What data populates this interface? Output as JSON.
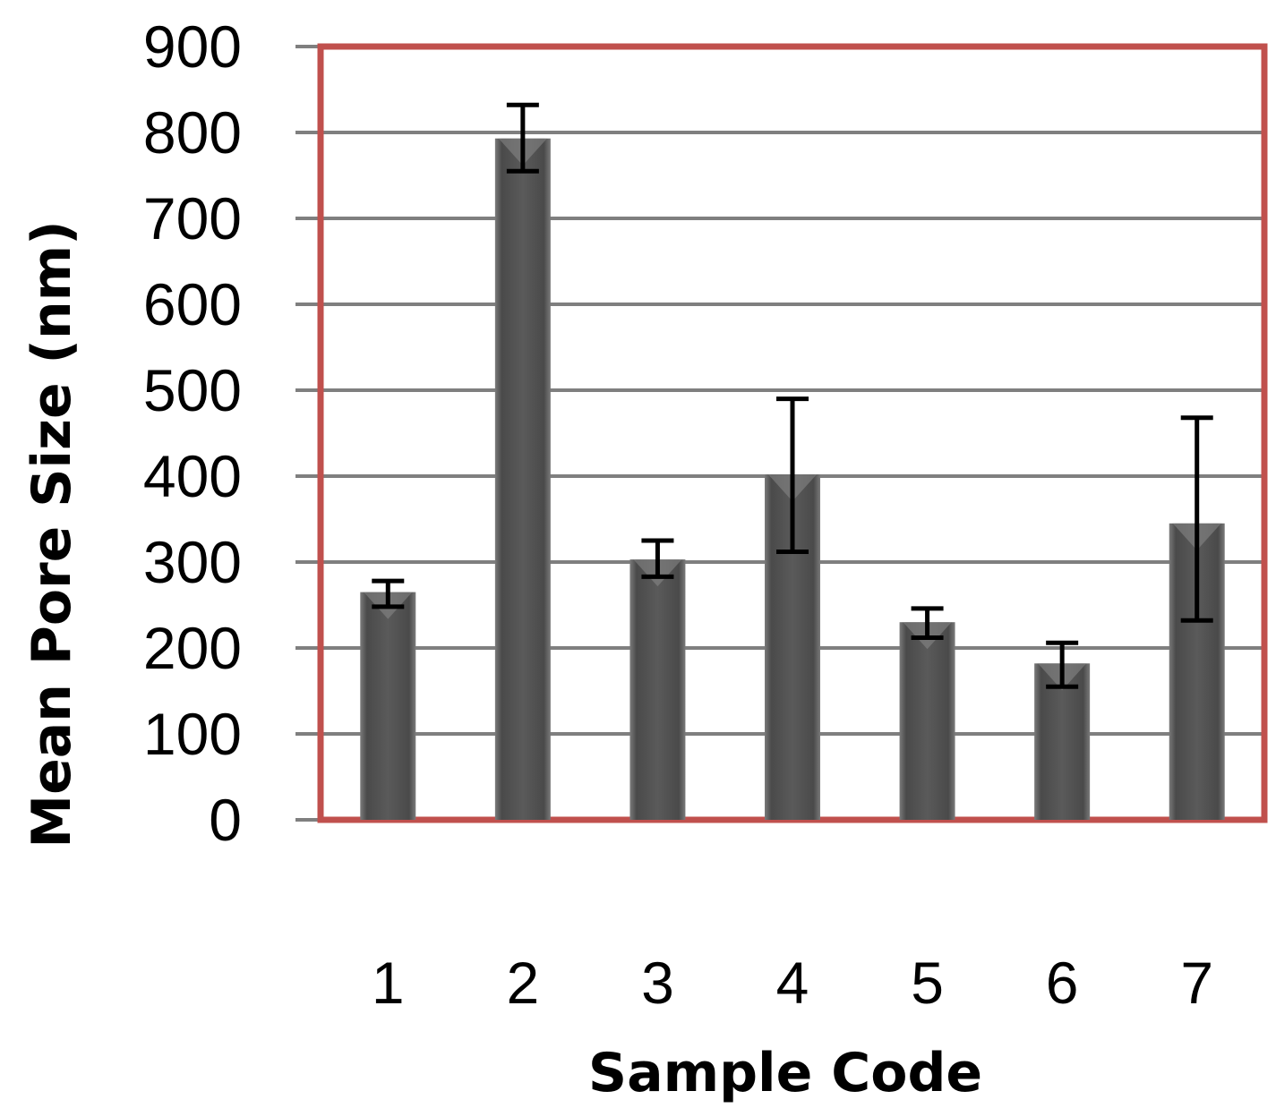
{
  "chart_data": {
    "type": "bar",
    "title": "",
    "xlabel": "Sample Code",
    "ylabel": "Mean Pore Size (nm)",
    "categories": [
      "1",
      "2",
      "3",
      "4",
      "5",
      "6",
      "7"
    ],
    "values": [
      265,
      793,
      303,
      402,
      230,
      182,
      345
    ],
    "error_upper": [
      278,
      832,
      325,
      490,
      246,
      206,
      468
    ],
    "error_lower": [
      248,
      755,
      283,
      312,
      212,
      155,
      232
    ],
    "ylim": [
      0,
      900
    ],
    "yticks": [
      "0",
      "100",
      "200",
      "300",
      "400",
      "500",
      "600",
      "700",
      "800",
      "900"
    ],
    "grid": true,
    "legend": "none",
    "colors": {
      "bar": "#555555",
      "bar_highlight": "#8a8a8a",
      "plot_border": "#c0504d",
      "gridline": "#7f7f7f",
      "error_bar": "#000000"
    }
  }
}
